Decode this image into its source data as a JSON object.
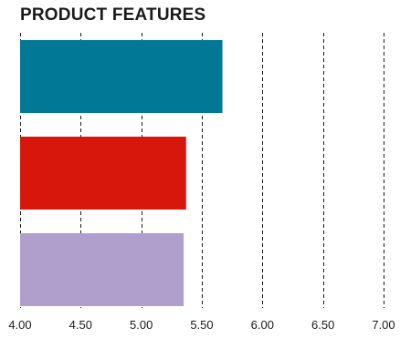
{
  "chart_data": {
    "type": "bar",
    "orientation": "horizontal",
    "title": "PRODUCT FEATURES",
    "xlabel": "",
    "ylabel": "",
    "categories": [
      "",
      "",
      ""
    ],
    "values": [
      5.67,
      5.37,
      5.35
    ],
    "colors": [
      "#007896",
      "#d7160c",
      "#b09fcc"
    ],
    "xlim": [
      4.0,
      7.0
    ],
    "xticks": [
      4.0,
      4.5,
      5.0,
      5.5,
      6.0,
      6.5,
      7.0
    ],
    "xtick_labels": [
      "4.00",
      "4.50",
      "5.00",
      "5.50",
      "6.00",
      "6.50",
      "7.00"
    ],
    "grid": "vertical-dashed",
    "legend": "none"
  }
}
